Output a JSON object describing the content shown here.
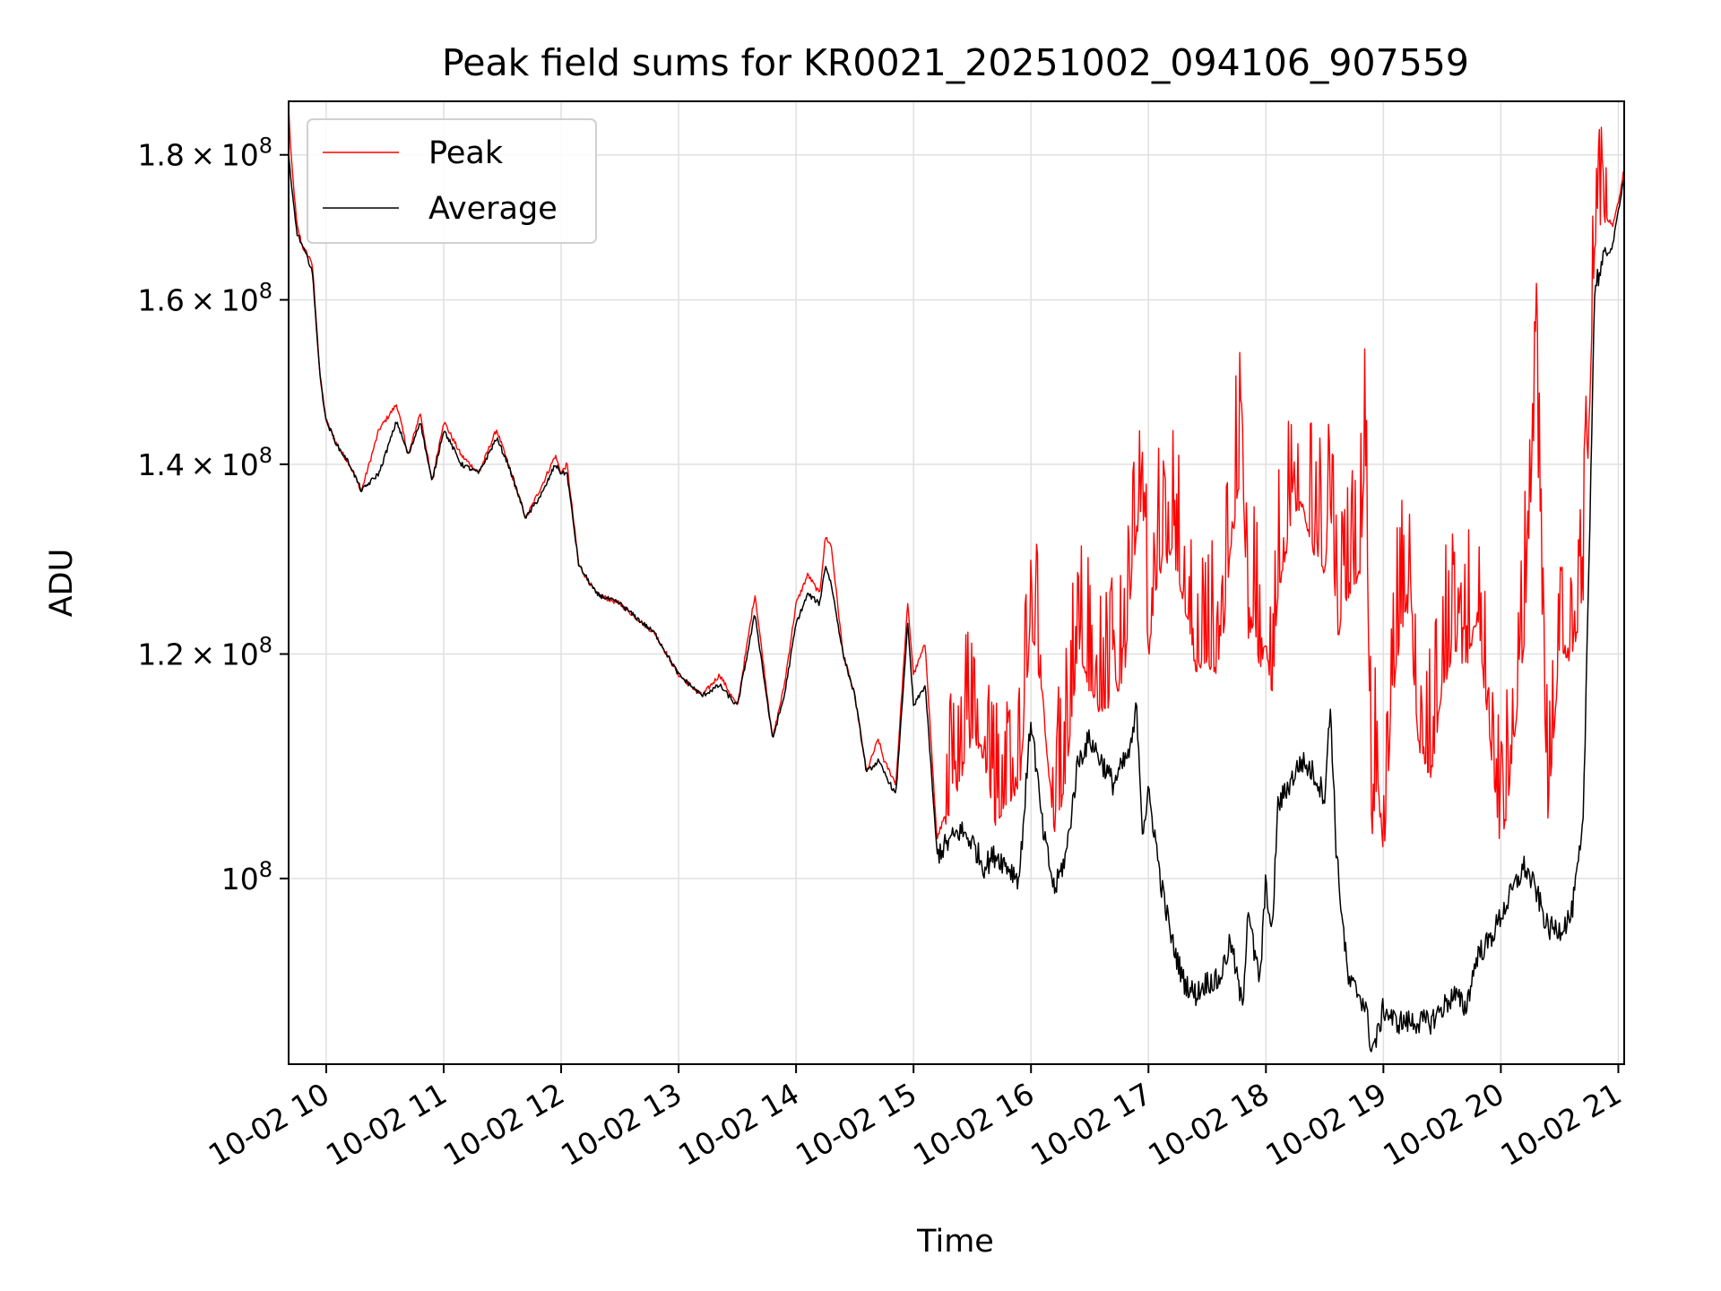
{
  "chart_data": {
    "type": "line",
    "title": "Peak field sums for KR0021_20251002_094106_907559",
    "xlabel": "Time",
    "ylabel": "ADU",
    "yscale": "log",
    "grid": true,
    "legend_position": "top-left",
    "xlim": [
      9.68,
      21.05
    ],
    "ylim": [
      86000000,
      188000000
    ],
    "x_unit": "hour of 2025-10-02",
    "x_ticks": [
      {
        "value": 10,
        "label": "10-02 10"
      },
      {
        "value": 11,
        "label": "10-02 11"
      },
      {
        "value": 12,
        "label": "10-02 12"
      },
      {
        "value": 13,
        "label": "10-02 13"
      },
      {
        "value": 14,
        "label": "10-02 14"
      },
      {
        "value": 15,
        "label": "10-02 15"
      },
      {
        "value": 16,
        "label": "10-02 16"
      },
      {
        "value": 17,
        "label": "10-02 17"
      },
      {
        "value": 18,
        "label": "10-02 18"
      },
      {
        "value": 19,
        "label": "10-02 19"
      },
      {
        "value": 20,
        "label": "10-02 20"
      },
      {
        "value": 21,
        "label": "10-02 21"
      }
    ],
    "y_ticks": [
      {
        "value": 100000000,
        "mant": "",
        "exp": "8"
      },
      {
        "value": 120000000,
        "mant": "1.2",
        "exp": "8"
      },
      {
        "value": 140000000,
        "mant": "1.4",
        "exp": "8"
      },
      {
        "value": 160000000,
        "mant": "1.6",
        "exp": "8"
      },
      {
        "value": 180000000,
        "mant": "1.8",
        "exp": "8"
      }
    ],
    "colors": {
      "peak": "#ff0000",
      "average": "#000000",
      "grid": "#e0e0e0"
    },
    "series": [
      {
        "name": "Peak",
        "color": "#ff0000",
        "x": [
          9.68,
          9.7,
          9.75,
          9.8,
          9.88,
          9.95,
          10.0,
          10.1,
          10.2,
          10.3,
          10.45,
          10.6,
          10.7,
          10.8,
          10.9,
          11.0,
          11.15,
          11.3,
          11.45,
          11.55,
          11.7,
          11.85,
          11.95,
          12.0,
          12.05,
          12.15,
          12.3,
          12.5,
          12.6,
          12.8,
          13.0,
          13.2,
          13.35,
          13.5,
          13.65,
          13.8,
          13.9,
          14.0,
          14.1,
          14.2,
          14.25,
          14.3,
          14.4,
          14.5,
          14.6,
          14.7,
          14.75,
          14.85,
          14.95,
          15.0,
          15.1,
          15.2,
          15.3,
          15.4,
          15.5,
          15.6,
          15.7,
          15.8,
          15.9,
          16.0,
          16.1,
          16.2,
          16.3,
          16.4,
          16.5,
          16.6,
          16.7,
          16.8,
          16.85,
          16.9,
          16.95,
          17.0,
          17.05,
          17.1,
          17.2,
          17.3,
          17.4,
          17.5,
          17.6,
          17.7,
          17.8,
          17.85,
          17.9,
          17.95,
          18.0,
          18.05,
          18.1,
          18.2,
          18.3,
          18.4,
          18.5,
          18.55,
          18.6,
          18.7,
          18.8,
          18.85,
          18.9,
          18.95,
          19.0,
          19.1,
          19.2,
          19.3,
          19.4,
          19.5,
          19.6,
          19.7,
          19.8,
          19.9,
          20.0,
          20.1,
          20.2,
          20.3,
          20.4,
          20.5,
          20.6,
          20.7,
          20.8,
          20.9,
          20.95,
          21.0,
          21.05
        ],
        "y": [
          187000000,
          180000000,
          170000000,
          167000000,
          165000000,
          150000000,
          145000000,
          142000000,
          140000000,
          137000000,
          144000000,
          147000000,
          141000000,
          146000000,
          138000000,
          145000000,
          141000000,
          139000000,
          144000000,
          140000000,
          134000000,
          138000000,
          141000000,
          139000000,
          140000000,
          129000000,
          126000000,
          125000000,
          124000000,
          122000000,
          118000000,
          116000000,
          118000000,
          115000000,
          126000000,
          112000000,
          117000000,
          125000000,
          128000000,
          126000000,
          132000000,
          131000000,
          120000000,
          116000000,
          109000000,
          112000000,
          110000000,
          108000000,
          125000000,
          118000000,
          121000000,
          103000000,
          105000000,
          108000000,
          112000000,
          110000000,
          104000000,
          106000000,
          107000000,
          122000000,
          115000000,
          103000000,
          108000000,
          120000000,
          116000000,
          114000000,
          115000000,
          118000000,
          126000000,
          132000000,
          135000000,
          119000000,
          125000000,
          128000000,
          130000000,
          125000000,
          118000000,
          119000000,
          117000000,
          130000000,
          140000000,
          120000000,
          123000000,
          118000000,
          121000000,
          115000000,
          125000000,
          132000000,
          135000000,
          130000000,
          128000000,
          135000000,
          121000000,
          125000000,
          128000000,
          140000000,
          103000000,
          108000000,
          101000000,
          118000000,
          125000000,
          111000000,
          108000000,
          116000000,
          120000000,
          118000000,
          123000000,
          112000000,
          101000000,
          110000000,
          121000000,
          148000000,
          104000000,
          120000000,
          119000000,
          125000000,
          166000000,
          171000000,
          170000000,
          173000000,
          178000000
        ]
      },
      {
        "name": "Average",
        "color": "#000000",
        "x": [
          9.68,
          9.7,
          9.75,
          9.8,
          9.88,
          9.95,
          10.0,
          10.1,
          10.2,
          10.3,
          10.45,
          10.6,
          10.7,
          10.8,
          10.9,
          11.0,
          11.15,
          11.3,
          11.45,
          11.55,
          11.7,
          11.85,
          11.95,
          12.0,
          12.05,
          12.15,
          12.3,
          12.5,
          12.6,
          12.8,
          13.0,
          13.2,
          13.35,
          13.5,
          13.65,
          13.8,
          13.9,
          14.0,
          14.1,
          14.2,
          14.25,
          14.3,
          14.4,
          14.5,
          14.6,
          14.7,
          14.75,
          14.85,
          14.95,
          15.0,
          15.1,
          15.2,
          15.3,
          15.4,
          15.5,
          15.6,
          15.7,
          15.8,
          15.9,
          16.0,
          16.1,
          16.2,
          16.3,
          16.4,
          16.5,
          16.6,
          16.7,
          16.8,
          16.85,
          16.9,
          16.95,
          17.0,
          17.05,
          17.1,
          17.2,
          17.3,
          17.4,
          17.5,
          17.6,
          17.7,
          17.8,
          17.85,
          17.9,
          17.95,
          18.0,
          18.05,
          18.1,
          18.2,
          18.3,
          18.4,
          18.5,
          18.55,
          18.6,
          18.7,
          18.8,
          18.85,
          18.9,
          18.95,
          19.0,
          19.1,
          19.2,
          19.3,
          19.4,
          19.5,
          19.6,
          19.7,
          19.8,
          19.9,
          20.0,
          20.1,
          20.2,
          20.3,
          20.4,
          20.5,
          20.6,
          20.7,
          20.8,
          20.9,
          20.95,
          21.0,
          21.05
        ],
        "y": [
          180000000,
          176000000,
          169000000,
          167000000,
          164000000,
          150000000,
          145000000,
          142000000,
          140000000,
          137000000,
          139000000,
          145000000,
          141000000,
          145000000,
          138000000,
          144000000,
          140000000,
          139000000,
          143000000,
          140000000,
          134000000,
          137000000,
          140000000,
          139000000,
          139000000,
          129000000,
          126000000,
          125000000,
          124000000,
          122000000,
          118000000,
          116000000,
          117000000,
          115000000,
          124000000,
          112000000,
          116000000,
          123000000,
          126000000,
          125000000,
          129000000,
          127000000,
          120000000,
          116000000,
          109000000,
          110000000,
          109000000,
          107000000,
          123000000,
          115000000,
          117000000,
          102000000,
          103000000,
          104000000,
          103000000,
          101000000,
          102000000,
          101000000,
          100000000,
          114000000,
          104000000,
          99000000,
          102000000,
          110000000,
          112000000,
          110000000,
          108000000,
          110000000,
          111000000,
          115000000,
          104000000,
          107000000,
          104000000,
          100000000,
          95000000,
          92000000,
          91000000,
          92000000,
          92000000,
          95000000,
          90000000,
          98000000,
          94000000,
          92000000,
          100000000,
          95000000,
          106000000,
          108000000,
          110000000,
          109000000,
          107000000,
          115000000,
          102000000,
          92000000,
          91000000,
          90000000,
          87000000,
          88000000,
          90000000,
          89000000,
          89000000,
          89000000,
          89000000,
          90000000,
          91000000,
          90000000,
          94000000,
          95000000,
          97000000,
          99000000,
          101000000,
          99000000,
          96000000,
          96000000,
          97000000,
          104000000,
          162000000,
          166000000,
          167000000,
          172000000,
          177000000
        ]
      }
    ]
  }
}
